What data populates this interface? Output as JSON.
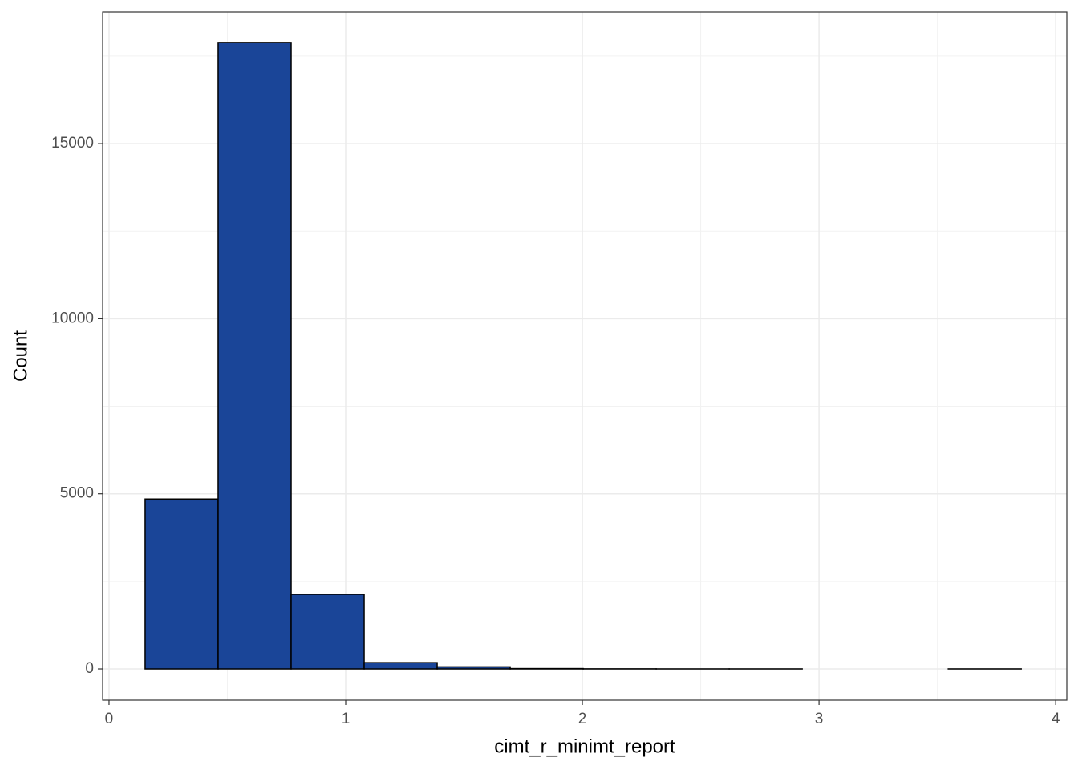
{
  "chart_data": {
    "type": "histogram",
    "x_label": "cimt_r_minimt_report",
    "y_label": "Count",
    "bins": [
      0.1525,
      0.461,
      0.7695,
      1.078,
      1.3865,
      1.695,
      2.0035,
      2.312,
      2.6205,
      2.929,
      3.2375,
      3.546,
      3.8545
    ],
    "values": [
      4850,
      17890,
      2130,
      180,
      60,
      10,
      3,
      1,
      1,
      0,
      0,
      1
    ],
    "color": "#1a4598",
    "xlim": [
      -0.027,
      4.047
    ],
    "xticks": [
      0,
      1,
      2,
      3,
      4
    ],
    "x_minor_ticks": [
      0.5,
      1.5,
      2.5,
      3.5
    ],
    "ylim": [
      -893,
      18758
    ],
    "yticks": [
      0,
      5000,
      10000,
      15000
    ],
    "y_minor_ticks": [
      2500,
      7500,
      12500,
      17500
    ],
    "grid": true
  }
}
